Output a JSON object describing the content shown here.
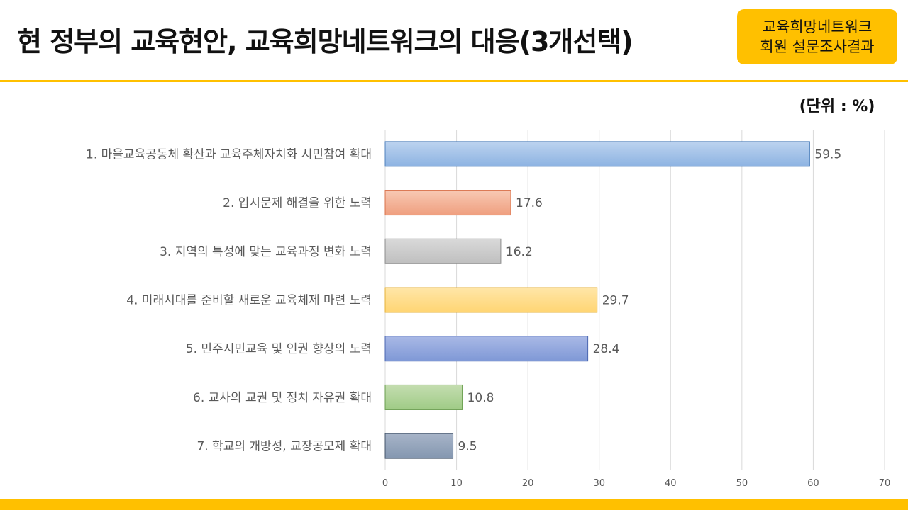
{
  "header": {
    "title": "현 정부의 교육현안, 교육희망네트워크의 대응(3개선택)",
    "badge_line1": "교육희망네트워크",
    "badge_line2": "회원 설문조사결과",
    "unit": "(단위 : %)"
  },
  "colors": {
    "accent": "#ffc000"
  },
  "chart_data": {
    "type": "bar",
    "orientation": "horizontal",
    "categories": [
      "1. 마을교육공동체 확산과 교육주체자치화 시민참여 확대",
      "2. 입시문제 해결을 위한 노력",
      "3. 지역의 특성에 맞는 교육과정 변화 노력",
      "4. 미래시대를 준비할 새로운 교육체제 마련 노력",
      "5. 민주시민교육 및 인권 향상의 노력",
      "6. 교사의 교권 및 정치 자유권 확대",
      "7. 학교의 개방성, 교장공모제 확대"
    ],
    "values": [
      59.5,
      17.6,
      16.2,
      29.7,
      28.4,
      10.8,
      9.5
    ],
    "value_labels": [
      "59.5",
      "17.6",
      "16.2",
      "29.7",
      "28.4",
      "10.8",
      "9.5"
    ],
    "bar_colors": [
      [
        "#bcd3ef",
        "#8db3e2",
        "#4f81bd"
      ],
      [
        "#f8c9b4",
        "#ef9f7f",
        "#d9714a"
      ],
      [
        "#d9d9d9",
        "#bfbfbf",
        "#8c8c8c"
      ],
      [
        "#ffe6a8",
        "#ffd573",
        "#e6b23a"
      ],
      [
        "#a9b9e6",
        "#7f98d6",
        "#4a66b0"
      ],
      [
        "#c4ddb0",
        "#9fcb86",
        "#6a9e4f"
      ],
      [
        "#a7b4c8",
        "#8497b0",
        "#44546a"
      ]
    ],
    "xlim": [
      0,
      70
    ],
    "xticks": [
      "0",
      "10",
      "20",
      "30",
      "40",
      "50",
      "60",
      "70"
    ],
    "grid": true,
    "legend": "none"
  }
}
